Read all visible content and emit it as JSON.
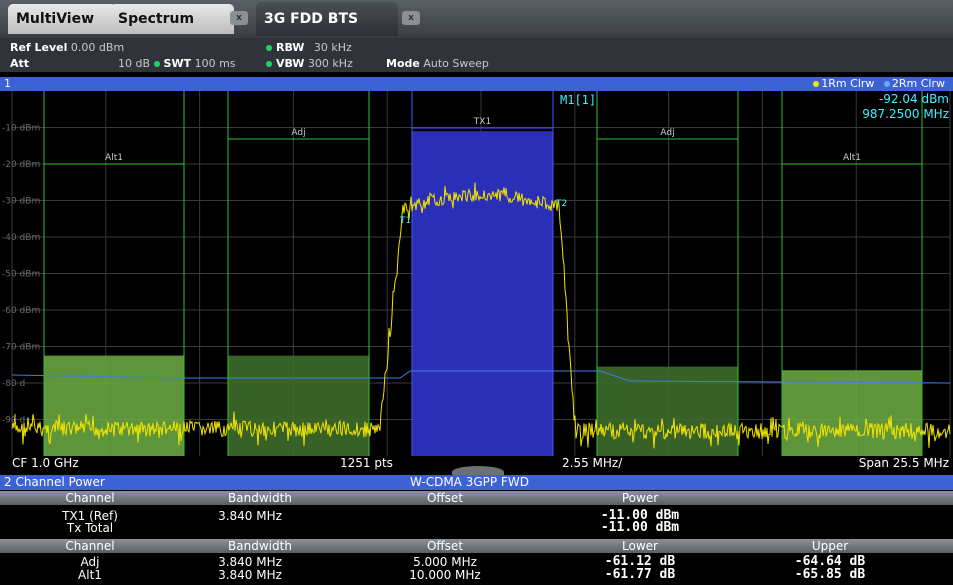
{
  "tabs": [
    {
      "label": "MultiView"
    },
    {
      "label": "Spectrum"
    },
    {
      "label": "3G FDD BTS"
    }
  ],
  "close_glyph": "x",
  "settings": {
    "ref_level_label": "Ref Level",
    "ref_level_value": "0.00 dBm",
    "att_label": "Att",
    "att_value": "10 dB",
    "swt_label": "SWT",
    "swt_value": "100 ms",
    "rbw_label": "RBW",
    "rbw_value": "30 kHz",
    "vbw_label": "VBW",
    "vbw_value": "300 kHz",
    "mode_label": "Mode",
    "mode_value": "Auto Sweep"
  },
  "window": {
    "number": "1",
    "trace1_label": "1Rm Clrw",
    "trace2_label": "2Rm Clrw"
  },
  "marker": {
    "name": "M1[1]",
    "level": "-92.04 dBm",
    "freq": "987.2500 MHz"
  },
  "chart_data": {
    "type": "line",
    "title": "",
    "y_tick_labels": [
      "-10 dBm",
      "-20 dBm",
      "-30 dBm",
      "-40 dBm",
      "-50 dBm",
      "-60 dBm",
      "-70 dBm",
      "-80 d",
      "-90 d"
    ],
    "channel_labels": [
      {
        "label": "Alt1",
        "side": "left"
      },
      {
        "label": "Adj",
        "side": "left"
      },
      {
        "label": "TX1",
        "side": "center"
      },
      {
        "label": "Adj",
        "side": "right"
      },
      {
        "label": "Alt1",
        "side": "right"
      }
    ],
    "trace_markers": [
      "T1",
      "T2"
    ],
    "bars": [
      {
        "name": "Alt1",
        "power_dbm": -72.5
      },
      {
        "name": "Adj",
        "power_dbm": -72.5
      },
      {
        "name": "TX1",
        "power_dbm": -11.0
      },
      {
        "name": "Adj",
        "power_dbm": -75.5
      },
      {
        "name": "Alt1",
        "power_dbm": -76.5
      }
    ],
    "ylim": [
      -100,
      0
    ],
    "grid": true
  },
  "footer": {
    "cf": "CF 1.0 GHz",
    "points": "1251 pts",
    "div": "2.55 MHz/",
    "span": "Span 25.5 MHz"
  },
  "results": {
    "panel_title": "2 Channel Power",
    "standard": "W-CDMA 3GPP FWD",
    "header1": [
      "Channel",
      "Bandwidth",
      "Offset",
      "Power"
    ],
    "tx_rows": [
      {
        "channel": "TX1 (Ref)",
        "bandwidth": "3.840 MHz",
        "power": "-11.00 dBm"
      },
      {
        "channel": "Tx Total",
        "bandwidth": "",
        "power": "-11.00 dBm"
      }
    ],
    "header2": [
      "Channel",
      "Bandwidth",
      "Offset",
      "Lower",
      "Upper"
    ],
    "aclr_rows": [
      {
        "channel": "Adj",
        "bandwidth": "3.840 MHz",
        "offset": "5.000 MHz",
        "lower": "-61.12 dB",
        "upper": "-64.64 dB"
      },
      {
        "channel": "Alt1",
        "bandwidth": "3.840 MHz",
        "offset": "10.000 MHz",
        "lower": "-61.77 dB",
        "upper": "-65.85 dB"
      }
    ]
  }
}
